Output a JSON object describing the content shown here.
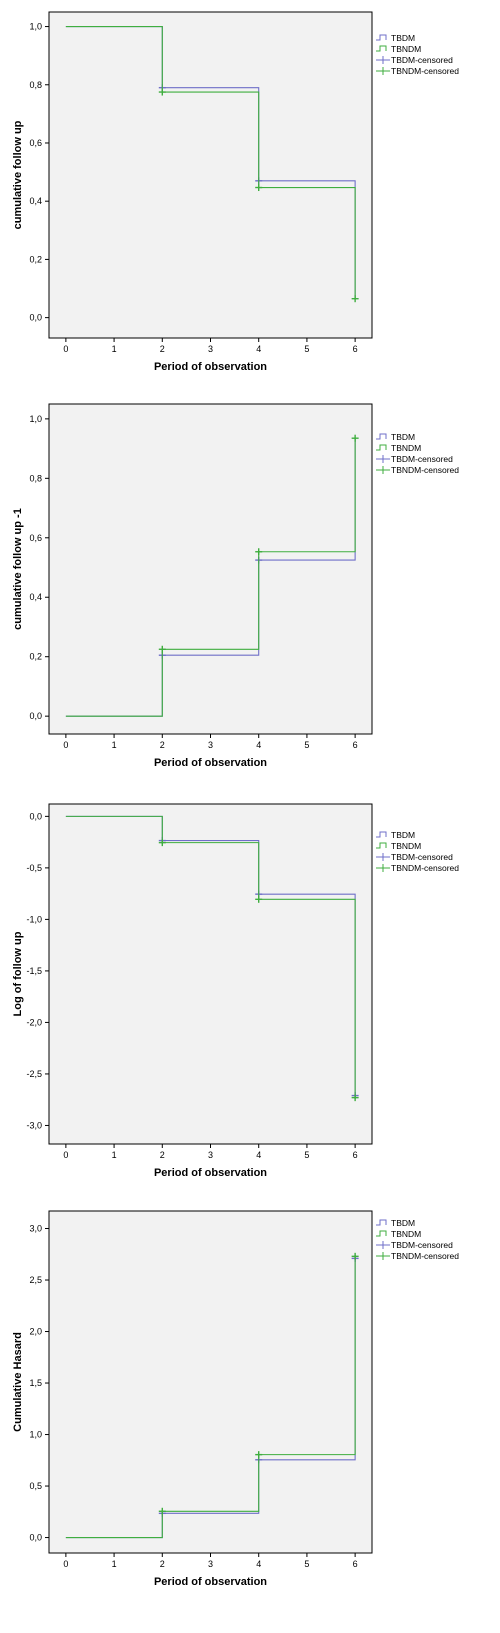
{
  "colors": {
    "tbdm": "#6f6fc8",
    "tbndm": "#3fae3f",
    "plot_bg": "#f2f2f2",
    "frame": "#000000"
  },
  "legend": {
    "items": [
      {
        "label": "TBDM",
        "series": "tbdm",
        "kind": "line"
      },
      {
        "label": "TBNDM",
        "series": "tbndm",
        "kind": "line"
      },
      {
        "label": "TBDM-censored",
        "series": "tbdm",
        "kind": "cross"
      },
      {
        "label": "TBNDM-censored",
        "series": "tbndm",
        "kind": "cross"
      }
    ]
  },
  "chart_data": [
    {
      "type": "line",
      "step": true,
      "xlabel": "Period of observation",
      "ylabel": "cumulative follow up",
      "xlim": [
        -0.35,
        6.35
      ],
      "ylim": [
        -0.07,
        1.05
      ],
      "x_ticks": [
        0,
        1,
        2,
        3,
        4,
        5,
        6
      ],
      "y_ticks": [
        0.0,
        0.2,
        0.4,
        0.6,
        0.8,
        1.0
      ],
      "y_tick_labels": [
        "0,0",
        "0,2",
        "0,4",
        "0,6",
        "0,8",
        "1,0"
      ],
      "legend_position": "right",
      "series": [
        {
          "name": "TBDM",
          "x": [
            0,
            2,
            4,
            6
          ],
          "y": [
            1.0,
            0.79,
            0.47,
            0.065
          ],
          "censored": [
            [
              2,
              0.79
            ],
            [
              4,
              0.47
            ]
          ]
        },
        {
          "name": "TBNDM",
          "x": [
            0,
            2,
            4,
            6
          ],
          "y": [
            1.0,
            0.775,
            0.447,
            0.065
          ],
          "censored": [
            [
              2,
              0.775
            ],
            [
              4,
              0.447
            ],
            [
              6,
              0.065
            ]
          ]
        }
      ]
    },
    {
      "type": "line",
      "step": true,
      "xlabel": "Period of observation",
      "ylabel": "cumulative follow up -1",
      "xlim": [
        -0.35,
        6.35
      ],
      "ylim": [
        -0.06,
        1.05
      ],
      "x_ticks": [
        0,
        1,
        2,
        3,
        4,
        5,
        6
      ],
      "y_ticks": [
        0.0,
        0.2,
        0.4,
        0.6,
        0.8,
        1.0
      ],
      "y_tick_labels": [
        "0,0",
        "0,2",
        "0,4",
        "0,6",
        "0,8",
        "1,0"
      ],
      "legend_position": "right",
      "series": [
        {
          "name": "TBDM",
          "x": [
            0,
            2,
            4,
            6
          ],
          "y": [
            0.0,
            0.205,
            0.525,
            0.935
          ],
          "censored": [
            [
              2,
              0.205
            ],
            [
              4,
              0.525
            ]
          ]
        },
        {
          "name": "TBNDM",
          "x": [
            0,
            2,
            4,
            6
          ],
          "y": [
            0.0,
            0.225,
            0.553,
            0.935
          ],
          "censored": [
            [
              2,
              0.225
            ],
            [
              4,
              0.553
            ],
            [
              6,
              0.935
            ]
          ]
        }
      ]
    },
    {
      "type": "line",
      "step": true,
      "xlabel": "Period of observation",
      "ylabel": "Log of follow up",
      "xlim": [
        -0.35,
        6.35
      ],
      "ylim": [
        -3.18,
        0.12
      ],
      "x_ticks": [
        0,
        1,
        2,
        3,
        4,
        5,
        6
      ],
      "y_ticks": [
        0.0,
        -0.5,
        -1.0,
        -1.5,
        -2.0,
        -2.5,
        -3.0
      ],
      "y_tick_labels": [
        "0,0",
        "-0,5",
        "-1,0",
        "-1,5",
        "-2,0",
        "-2,5",
        "-3,0"
      ],
      "legend_position": "right",
      "series": [
        {
          "name": "TBDM",
          "x": [
            0,
            2,
            4,
            6
          ],
          "y": [
            0.0,
            -0.235,
            -0.755,
            -2.71
          ],
          "censored": [
            [
              2,
              -0.235
            ],
            [
              4,
              -0.755
            ],
            [
              6,
              -2.71
            ]
          ]
        },
        {
          "name": "TBNDM",
          "x": [
            0,
            2,
            4,
            6
          ],
          "y": [
            0.0,
            -0.255,
            -0.805,
            -2.73
          ],
          "censored": [
            [
              2,
              -0.255
            ],
            [
              4,
              -0.805
            ],
            [
              6,
              -2.73
            ]
          ]
        }
      ]
    },
    {
      "type": "line",
      "step": true,
      "xlabel": "Period of observation",
      "ylabel": "Cumulative Hasard",
      "xlim": [
        -0.35,
        6.35
      ],
      "ylim": [
        -0.15,
        3.17
      ],
      "x_ticks": [
        0,
        1,
        2,
        3,
        4,
        5,
        6
      ],
      "y_ticks": [
        0.0,
        0.5,
        1.0,
        1.5,
        2.0,
        2.5,
        3.0
      ],
      "y_tick_labels": [
        "0,0",
        "0,5",
        "1,0",
        "1,5",
        "2,0",
        "2,5",
        "3,0"
      ],
      "legend_position": "right",
      "series": [
        {
          "name": "TBDM",
          "x": [
            0,
            2,
            4,
            6
          ],
          "y": [
            0.0,
            0.235,
            0.755,
            2.71
          ],
          "censored": [
            [
              2,
              0.235
            ],
            [
              4,
              0.755
            ],
            [
              6,
              2.71
            ]
          ]
        },
        {
          "name": "TBNDM",
          "x": [
            0,
            2,
            4,
            6
          ],
          "y": [
            0.0,
            0.255,
            0.805,
            2.73
          ],
          "censored": [
            [
              2,
              0.255
            ],
            [
              4,
              0.805
            ],
            [
              6,
              2.73
            ]
          ]
        }
      ]
    }
  ]
}
